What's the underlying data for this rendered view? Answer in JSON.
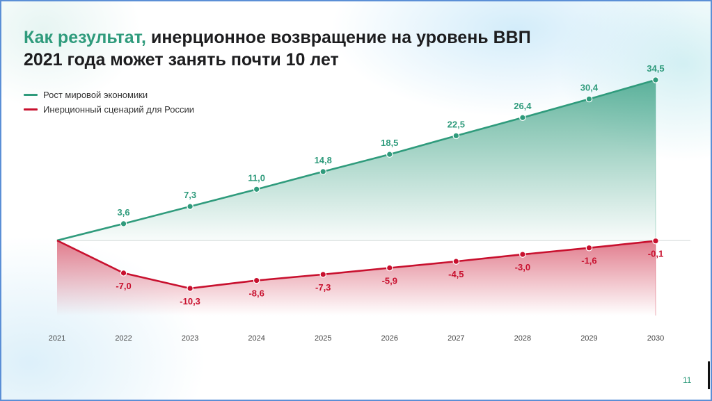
{
  "slide": {
    "title_accent": "Как результат,",
    "title_rest": " инерционное возвращение на уровень ВВП",
    "title_line2": "2021 года может занять почти 10 лет",
    "page_number": "11"
  },
  "colors": {
    "world": "#2f9b7c",
    "russia": "#c8102e",
    "title_accent": "#2f9b7c"
  },
  "chart_data": {
    "type": "line",
    "x": [
      "2021",
      "2022",
      "2023",
      "2024",
      "2025",
      "2026",
      "2027",
      "2028",
      "2029",
      "2030"
    ],
    "series": [
      {
        "name": "Рост мировой экономики",
        "values": [
          0,
          3.6,
          7.3,
          11.0,
          14.8,
          18.5,
          22.5,
          26.4,
          30.4,
          34.5
        ],
        "labels": [
          "",
          "3,6",
          "7,3",
          "11,0",
          "14,8",
          "18,5",
          "22,5",
          "26,4",
          "30,4",
          "34,5"
        ],
        "color": "#2f9b7c"
      },
      {
        "name": "Инерционный сценарий для России",
        "values": [
          0,
          -7.0,
          -10.3,
          -8.6,
          -7.3,
          -5.9,
          -4.5,
          -3.0,
          -1.6,
          -0.1
        ],
        "labels": [
          "",
          "-7,0",
          "-10,3",
          "-8,6",
          "-7,3",
          "-5,9",
          "-4,5",
          "-3,0",
          "-1,6",
          "-0,1"
        ],
        "color": "#c8102e"
      }
    ],
    "ylim": [
      -14,
      34.5
    ],
    "legend": "top-left",
    "grid": false,
    "fill": "area-to-zero"
  }
}
